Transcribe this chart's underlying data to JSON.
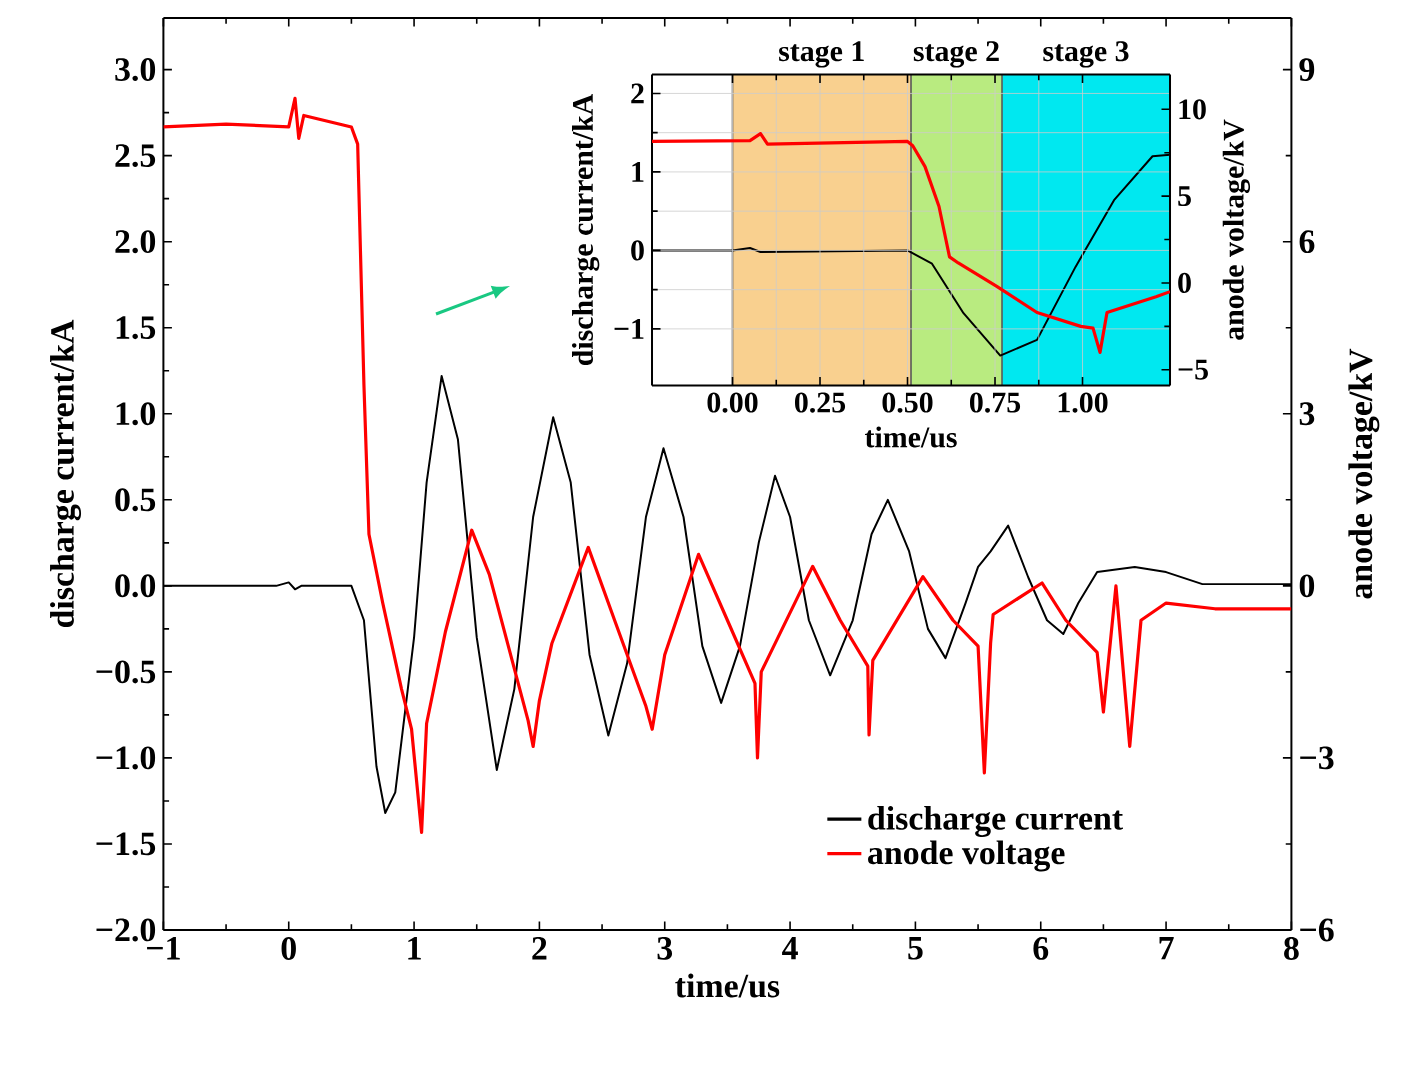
{
  "chart_data": [
    {
      "type": "line",
      "xlabel": "time/us",
      "ylabel": "discharge current/kA",
      "y2label": "anode voltage/kV",
      "legend": "bottom right",
      "xlim": [
        -1,
        8
      ],
      "xticks": [
        {
          "value": -1,
          "label": "−1"
        },
        0,
        1,
        2,
        3,
        4,
        5,
        6,
        7,
        8
      ],
      "ylim": [
        -2,
        3.3
      ],
      "yticks": [
        {
          "value": -2,
          "label": "−2.0"
        },
        {
          "value": -1.5,
          "label": "−1.5"
        },
        {
          "value": -1,
          "label": "−1.0"
        },
        {
          "value": -0.5,
          "label": "−0.5"
        },
        {
          "value": 0,
          "label": "0.0"
        },
        {
          "value": 0.5,
          "label": "0.5"
        },
        {
          "value": 1,
          "label": "1.0"
        },
        {
          "value": 1.5,
          "label": "1.5"
        },
        {
          "value": 2,
          "label": "2.0"
        },
        {
          "value": 2.5,
          "label": "2.5"
        },
        {
          "value": 3,
          "label": "3.0"
        }
      ],
      "y2lim": [
        -6,
        9.9
      ],
      "y2ticks": [
        {
          "value": -6,
          "label": "−6"
        },
        {
          "value": -3,
          "label": "−3"
        },
        0,
        3,
        6,
        9
      ],
      "series": [
        {
          "name": "discharge current",
          "color": "#000000",
          "x": [
            -1,
            -0.1,
            0.0,
            0.05,
            0.1,
            0.5,
            0.6,
            0.7,
            0.77,
            0.85,
            1.0,
            1.1,
            1.22,
            1.35,
            1.5,
            1.66,
            1.8,
            1.95,
            2.11,
            2.25,
            2.4,
            2.55,
            2.7,
            2.85,
            2.99,
            3.15,
            3.3,
            3.45,
            3.6,
            3.75,
            3.88,
            4.0,
            4.15,
            4.32,
            4.5,
            4.65,
            4.78,
            4.95,
            5.1,
            5.24,
            5.4,
            5.5,
            5.6,
            5.74,
            5.9,
            6.05,
            6.18,
            6.3,
            6.45,
            6.75,
            7.0,
            7.29,
            7.6,
            8
          ],
          "values": [
            0,
            0,
            0.02,
            -0.02,
            0,
            0,
            -0.2,
            -1.05,
            -1.32,
            -1.2,
            -0.3,
            0.6,
            1.22,
            0.85,
            -0.3,
            -1.07,
            -0.6,
            0.4,
            0.98,
            0.6,
            -0.4,
            -0.87,
            -0.45,
            0.4,
            0.8,
            0.4,
            -0.35,
            -0.68,
            -0.35,
            0.25,
            0.64,
            0.4,
            -0.2,
            -0.52,
            -0.2,
            0.3,
            0.5,
            0.2,
            -0.25,
            -0.42,
            -0.1,
            0.11,
            0.2,
            0.35,
            0.05,
            -0.2,
            -0.28,
            -0.1,
            0.08,
            0.11,
            0.08,
            0.01,
            0.01,
            0.01
          ]
        },
        {
          "name": "anode voltage",
          "color": "#ff0000",
          "axis": "y2",
          "x": [
            -1,
            -0.5,
            0,
            0.05,
            0.08,
            0.12,
            0.5,
            0.55,
            0.6,
            0.64,
            0.75,
            0.9,
            0.98,
            1.06,
            1.1,
            1.25,
            1.46,
            1.6,
            1.91,
            1.95,
            2.0,
            2.1,
            2.39,
            2.6,
            2.85,
            2.9,
            3.0,
            3.27,
            3.5,
            3.72,
            3.74,
            3.77,
            4.18,
            4.4,
            4.62,
            4.63,
            4.66,
            5.06,
            5.3,
            5.5,
            5.55,
            5.6,
            5.62,
            6.01,
            6.2,
            6.45,
            6.5,
            6.6,
            6.71,
            6.8,
            7.0,
            7.39,
            7.92,
            8
          ],
          "values": [
            8.0,
            8.05,
            8.0,
            8.5,
            7.8,
            8.2,
            8.0,
            7.7,
            3.5,
            0.9,
            -0.3,
            -1.8,
            -2.5,
            -4.3,
            -2.4,
            -0.8,
            0.97,
            0.2,
            -2.35,
            -2.8,
            -2.0,
            -1.0,
            0.67,
            -0.6,
            -2.1,
            -2.5,
            -1.2,
            0.55,
            -0.6,
            -1.7,
            -3.0,
            -1.5,
            0.34,
            -0.6,
            -1.4,
            -2.6,
            -1.3,
            0.16,
            -0.6,
            -1.05,
            -3.26,
            -1.0,
            -0.5,
            0.05,
            -0.6,
            -1.16,
            -2.2,
            0.0,
            -2.8,
            -0.6,
            -0.3,
            -0.4,
            -0.4,
            -0.4
          ]
        }
      ]
    },
    {
      "type": "line",
      "xlabel": "time/us",
      "ylabel": "discharge current/kA",
      "y2label": "anode voltage/kV",
      "grid": true,
      "xlim": [
        -0.23,
        1.25
      ],
      "xticks": [
        {
          "value": 0,
          "label": "0.00"
        },
        0.25,
        {
          "value": 0.5,
          "label": "0.50"
        },
        0.75,
        {
          "value": 1,
          "label": "1.00"
        }
      ],
      "ylim": [
        -1.72,
        2.24
      ],
      "yticks": [
        {
          "value": -1,
          "label": "−1"
        },
        0,
        1,
        2
      ],
      "y2lim": [
        -5.9,
        12
      ],
      "y2ticks": [
        {
          "value": -5,
          "label": "−5"
        },
        0,
        5,
        10
      ],
      "bands": [
        {
          "axis": "x",
          "from": 0.0,
          "to": 0.51,
          "label": "stage 1",
          "color": "#f9d08f"
        },
        {
          "axis": "x",
          "from": 0.51,
          "to": 0.77,
          "label": "stage 2",
          "color": "#b9eb80"
        },
        {
          "axis": "x",
          "from": 0.77,
          "to": 1.25,
          "label": "stage 3",
          "color": "#00e8f0"
        }
      ],
      "series": [
        {
          "color": "#000000",
          "x": [
            -0.23,
            0.0,
            0.05,
            0.08,
            0.5,
            0.57,
            0.66,
            0.765,
            0.87,
            0.98,
            1.09,
            1.2,
            1.25
          ],
          "values": [
            0,
            0,
            0.03,
            -0.02,
            0,
            -0.17,
            -0.8,
            -1.34,
            -1.14,
            -0.21,
            0.64,
            1.2,
            1.22
          ]
        },
        {
          "color": "#ff0000",
          "axis": "y2",
          "x": [
            -0.23,
            0.05,
            0.08,
            0.1,
            0.5,
            0.515,
            0.55,
            0.59,
            0.62,
            0.645,
            0.755,
            0.87,
            0.995,
            1.03,
            1.05,
            1.07,
            1.21,
            1.25
          ],
          "values": [
            8.15,
            8.2,
            8.6,
            8.0,
            8.15,
            7.9,
            6.7,
            4.4,
            1.5,
            1.15,
            -0.2,
            -1.7,
            -2.5,
            -2.6,
            -4.0,
            -1.7,
            -0.8,
            -0.5
          ]
        }
      ]
    }
  ]
}
